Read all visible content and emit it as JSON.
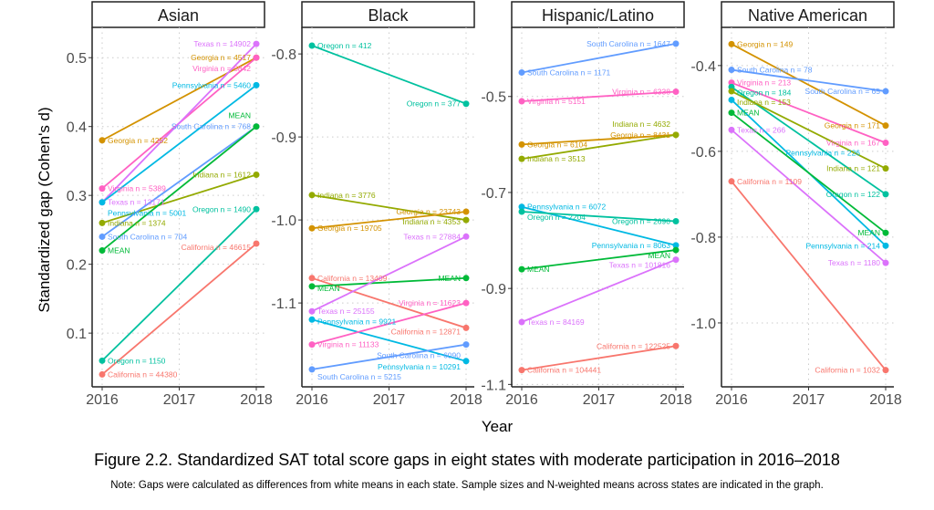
{
  "caption": "Figure 2.2. Standardized SAT total score gaps in eight states with moderate participation in 2016–2018",
  "note": "Note: Gaps were calculated as differences from white means in each state. Sample sizes and N-weighted means across states are indicated in the graph.",
  "colors": {
    "California": "#F8766D",
    "Georgia": "#D39200",
    "Indiana": "#93AA00",
    "MEAN": "#00BA38",
    "Oregon": "#00C19F",
    "Pennsylvania": "#00B9E3",
    "South Carolina": "#619CFF",
    "Texas": "#DB72FB",
    "Virginia": "#FF61C3"
  },
  "chart_data": [
    {
      "type": "line",
      "title": "Asian",
      "xlabel": "Year",
      "ylabel": "Standardized gap (Cohen's d)",
      "x": [
        2016,
        2018
      ],
      "x_ticks": [
        "2016",
        "2017",
        "2018"
      ],
      "ylim": [
        0.022,
        0.544
      ],
      "y_ticks": [
        0.1,
        0.2,
        0.3,
        0.4,
        0.5
      ],
      "y_tick_labels": [
        "0.1",
        "0.2",
        "0.3",
        "0.4",
        "0.5"
      ],
      "grid": true,
      "series": [
        {
          "name": "Georgia",
          "values": [
            0.38,
            0.5
          ],
          "labels": [
            "Georgia n =  4252",
            "Georgia n =  4517"
          ]
        },
        {
          "name": "Virginia",
          "values": [
            0.31,
            0.5
          ],
          "labels": [
            "Virginia n =  5389",
            "Virginia n =  5842"
          ]
        },
        {
          "name": "Texas",
          "values": [
            0.29,
            0.52
          ],
          "labels": [
            "Texas n =  13171",
            "Texas n =  14902"
          ]
        },
        {
          "name": "Pennsylvania",
          "values": [
            0.29,
            0.46
          ],
          "labels": [
            "Pennsylvania n =  5001",
            "Pennsylvania n =  5460"
          ]
        },
        {
          "name": "Indiana",
          "values": [
            0.26,
            0.33
          ],
          "labels": [
            "Indiana n =  1374",
            "Indiana n =  1612"
          ]
        },
        {
          "name": "South Carolina",
          "values": [
            0.24,
            0.4
          ],
          "labels": [
            "South Carolina n =  704",
            "South Carolina n =  768"
          ]
        },
        {
          "name": "MEAN",
          "values": [
            0.22,
            0.4
          ],
          "labels": [
            "MEAN",
            "MEAN"
          ]
        },
        {
          "name": "Oregon",
          "values": [
            0.06,
            0.28
          ],
          "labels": [
            "Oregon n =  1150",
            "Oregon n =  1490"
          ]
        },
        {
          "name": "California",
          "values": [
            0.04,
            0.23
          ],
          "labels": [
            "California n =  44380",
            "California n =  46615"
          ]
        }
      ]
    },
    {
      "type": "line",
      "title": "Black",
      "x": [
        2016,
        2018
      ],
      "x_ticks": [
        "2016",
        "2017",
        "2018"
      ],
      "ylim": [
        -1.201,
        -0.768
      ],
      "y_ticks": [
        -0.8,
        -0.9,
        -1.0,
        -1.1
      ],
      "y_tick_labels": [
        "-0.8",
        "-0.9",
        "-1.0",
        "-1.1"
      ],
      "grid": true,
      "series": [
        {
          "name": "Oregon",
          "values": [
            -0.79,
            -0.86
          ],
          "labels": [
            "Oregon n =  412",
            "Oregon n =  377"
          ]
        },
        {
          "name": "Indiana",
          "values": [
            -0.97,
            -1.0
          ],
          "labels": [
            "Indiana n =  3776",
            "Indiana n =  4353"
          ]
        },
        {
          "name": "Georgia",
          "values": [
            -1.01,
            -0.99
          ],
          "labels": [
            "Georgia n =  19705",
            "Georgia n =  23743"
          ]
        },
        {
          "name": "California",
          "values": [
            -1.07,
            -1.13
          ],
          "labels": [
            "California n =  13409",
            "California n =  12871"
          ]
        },
        {
          "name": "MEAN",
          "values": [
            -1.08,
            -1.07
          ],
          "labels": [
            "MEAN",
            "MEAN"
          ]
        },
        {
          "name": "Texas",
          "values": [
            -1.11,
            -1.02
          ],
          "labels": [
            "Texas n =  25155",
            "Texas n =  27884"
          ]
        },
        {
          "name": "Pennsylvania",
          "values": [
            -1.12,
            -1.17
          ],
          "labels": [
            "Pennsylvania n =  9921",
            "Pennsylvania n =  10291"
          ]
        },
        {
          "name": "Virginia",
          "values": [
            -1.15,
            -1.1
          ],
          "labels": [
            "Virginia n =  11133",
            "Virginia n =  11623"
          ]
        },
        {
          "name": "South Carolina",
          "values": [
            -1.18,
            -1.15
          ],
          "labels": [
            "South Carolina n =  5215",
            "South Carolina n =  6090"
          ]
        }
      ]
    },
    {
      "type": "line",
      "title": "Hispanic/Latino",
      "x": [
        2016,
        2018
      ],
      "x_ticks": [
        "2016",
        "2017",
        "2018"
      ],
      "ylim": [
        -1.105,
        -0.356
      ],
      "y_ticks": [
        -0.5,
        -0.7,
        -0.9,
        -1.1
      ],
      "y_tick_labels": [
        "-0.5",
        "-0.7",
        "-0.9",
        "-1.1"
      ],
      "grid": true,
      "series": [
        {
          "name": "South Carolina",
          "values": [
            -0.45,
            -0.39
          ],
          "labels": [
            "South Carolina n =  1171",
            "South Carolina n =  1647"
          ]
        },
        {
          "name": "Virginia",
          "values": [
            -0.51,
            -0.49
          ],
          "labels": [
            "Virginia n =  5151",
            "Virginia n =  6338"
          ]
        },
        {
          "name": "Georgia",
          "values": [
            -0.6,
            -0.58
          ],
          "labels": [
            "Georgia n =  6104",
            "Georgia n =  8431"
          ]
        },
        {
          "name": "Indiana",
          "values": [
            -0.63,
            -0.58
          ],
          "labels": [
            "Indiana n =  3513",
            "Indiana n =  4632"
          ]
        },
        {
          "name": "Pennsylvania",
          "values": [
            -0.73,
            -0.81
          ],
          "labels": [
            "Pennsylvania n =  6072",
            "Pennsylvania n =  8063"
          ]
        },
        {
          "name": "Oregon",
          "values": [
            -0.74,
            -0.76
          ],
          "labels": [
            "Oregon n =  2204",
            "Oregon n =  2690"
          ]
        },
        {
          "name": "MEAN",
          "values": [
            -0.86,
            -0.82
          ],
          "labels": [
            "MEAN",
            "MEAN"
          ]
        },
        {
          "name": "Texas",
          "values": [
            -0.97,
            -0.84
          ],
          "labels": [
            "Texas n =  84169",
            "Texas n =  101816"
          ]
        },
        {
          "name": "California",
          "values": [
            -1.07,
            -1.02
          ],
          "labels": [
            "California n =  104441",
            "California n =  122525"
          ]
        }
      ]
    },
    {
      "type": "line",
      "title": "Native American",
      "x": [
        2016,
        2018
      ],
      "x_ticks": [
        "2016",
        "2017",
        "2018"
      ],
      "ylim": [
        -1.149,
        -0.311
      ],
      "y_ticks": [
        -0.4,
        -0.6,
        -0.8,
        -1.0
      ],
      "y_tick_labels": [
        "-0.4",
        "-0.6",
        "-0.8",
        "-1.0"
      ],
      "grid": true,
      "series": [
        {
          "name": "Georgia",
          "values": [
            -0.35,
            -0.54
          ],
          "labels": [
            "Georgia n =  149",
            "Georgia n =  171"
          ]
        },
        {
          "name": "South Carolina",
          "values": [
            -0.41,
            -0.46
          ],
          "labels": [
            "South Carolina n =  78",
            "South Carolina n =  65"
          ]
        },
        {
          "name": "Virginia",
          "values": [
            -0.44,
            -0.58
          ],
          "labels": [
            "Virginia n =  213",
            "Virginia n =  167"
          ]
        },
        {
          "name": "Oregon",
          "values": [
            -0.45,
            -0.7
          ],
          "labels": [
            "Oregon n =  184",
            "Oregon n =  122"
          ]
        },
        {
          "name": "Indiana",
          "values": [
            -0.46,
            -0.64
          ],
          "labels": [
            "Indiana n =  153",
            "Indiana n =  121"
          ]
        },
        {
          "name": "Pennsylvania",
          "values": [
            -0.48,
            -0.82
          ],
          "labels": [
            "",
            "Pennsylvania n =  214"
          ],
          "mid_label": "Pennsylvania n =  226"
        },
        {
          "name": "MEAN",
          "values": [
            -0.51,
            -0.79
          ],
          "labels": [
            "MEAN",
            "MEAN"
          ]
        },
        {
          "name": "Texas",
          "values": [
            -0.55,
            -0.86
          ],
          "labels": [
            "Texas n =  266",
            "Texas n =  1180"
          ]
        },
        {
          "name": "California",
          "values": [
            -0.67,
            -1.11
          ],
          "labels": [
            "California n =  1109",
            "California n =  1032"
          ]
        }
      ]
    }
  ]
}
